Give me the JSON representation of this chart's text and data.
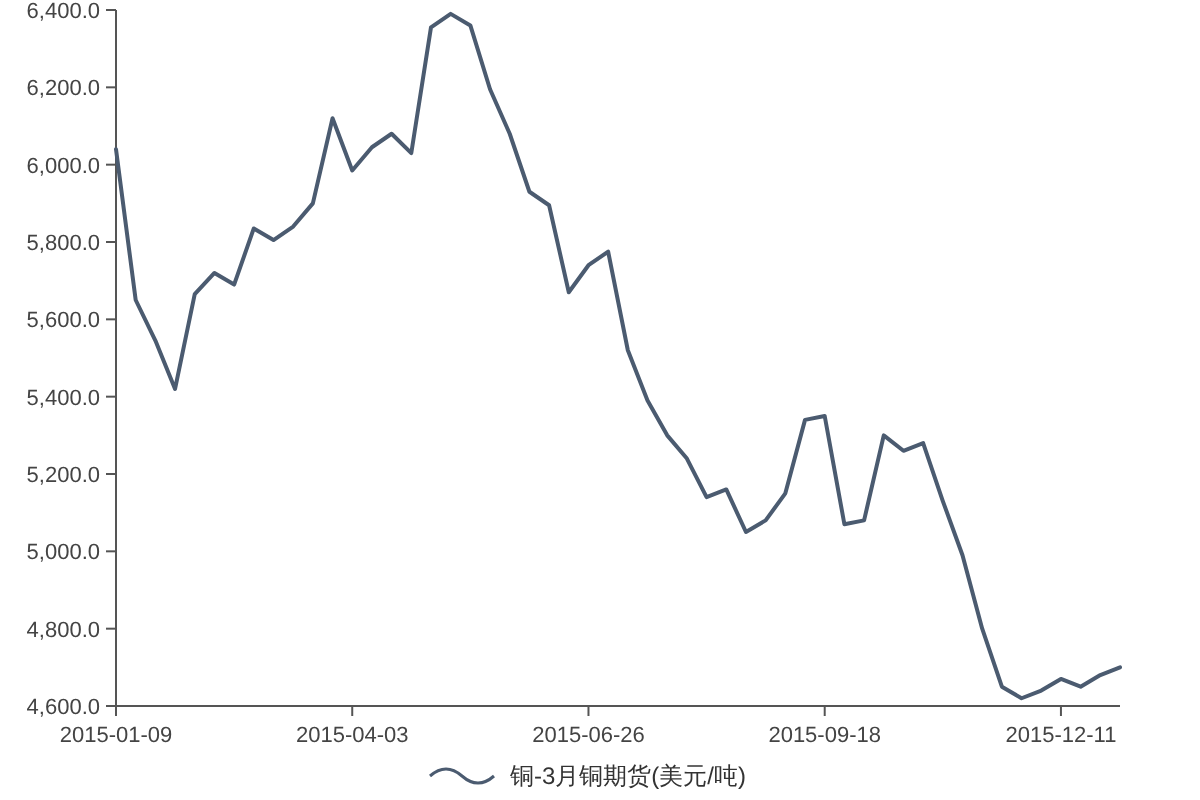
{
  "chart_data": {
    "type": "line",
    "x": [
      "2015-01-09",
      "2015-01-16",
      "2015-01-23",
      "2015-01-30",
      "2015-02-06",
      "2015-02-13",
      "2015-02-20",
      "2015-02-27",
      "2015-03-06",
      "2015-03-13",
      "2015-03-20",
      "2015-03-27",
      "2015-04-03",
      "2015-04-10",
      "2015-04-17",
      "2015-04-24",
      "2015-05-01",
      "2015-05-08",
      "2015-05-15",
      "2015-05-22",
      "2015-05-29",
      "2015-06-05",
      "2015-06-12",
      "2015-06-19",
      "2015-06-26",
      "2015-07-03",
      "2015-07-10",
      "2015-07-17",
      "2015-07-24",
      "2015-07-31",
      "2015-08-07",
      "2015-08-14",
      "2015-08-21",
      "2015-08-28",
      "2015-09-04",
      "2015-09-11",
      "2015-09-18",
      "2015-09-25",
      "2015-10-02",
      "2015-10-09",
      "2015-10-16",
      "2015-10-23",
      "2015-10-30",
      "2015-11-06",
      "2015-11-13",
      "2015-11-20",
      "2015-11-27",
      "2015-12-04",
      "2015-12-11",
      "2015-12-18",
      "2015-12-25",
      "2016-01-01"
    ],
    "series": [
      {
        "name": "铜-3月铜期货(美元/吨)",
        "color": "#4b5b70",
        "values": [
          6040,
          5650,
          5545,
          5420,
          5665,
          5720,
          5690,
          5835,
          5805,
          5840,
          5900,
          6120,
          5985,
          6045,
          6080,
          6030,
          6355,
          6390,
          6360,
          6195,
          6080,
          5930,
          5895,
          5670,
          5740,
          5775,
          5520,
          5390,
          5300,
          5240,
          5140,
          5160,
          5050,
          5080,
          5150,
          5340,
          5350,
          5070,
          5080,
          5300,
          5260,
          5280,
          5130,
          4990,
          4800,
          4650,
          4620,
          4640,
          4670,
          4650,
          4680,
          4700
        ]
      }
    ],
    "xlim": [
      "2015-01-09",
      "2016-01-01"
    ],
    "xticks": [
      "2015-01-09",
      "2015-04-03",
      "2015-06-26",
      "2015-09-18",
      "2015-12-11"
    ],
    "ylim": [
      4600,
      6400
    ],
    "yticks": [
      {
        "value": 4600,
        "label": "4,600.0"
      },
      {
        "value": 4800,
        "label": "4,800.0"
      },
      {
        "value": 5000,
        "label": "5,000.0"
      },
      {
        "value": 5200,
        "label": "5,200.0"
      },
      {
        "value": 5400,
        "label": "5,400.0"
      },
      {
        "value": 5600,
        "label": "5,600.0"
      },
      {
        "value": 5800,
        "label": "5,800.0"
      },
      {
        "value": 6000,
        "label": "6,000.0"
      },
      {
        "value": 6200,
        "label": "6,200.0"
      },
      {
        "value": 6400,
        "label": "6,400.0"
      }
    ],
    "grid": false,
    "legend": "bottom",
    "marker": "none",
    "line_style": "solid"
  }
}
